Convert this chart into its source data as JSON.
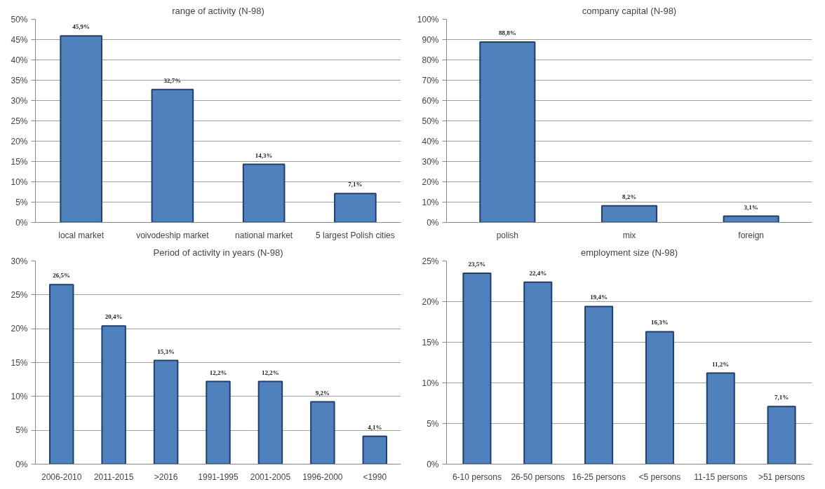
{
  "chart_data": [
    {
      "type": "bar",
      "title": "range of activity (N-98)",
      "categories": [
        "local market",
        "voivodeship market",
        "national market",
        "5 largest Polish cities"
      ],
      "values": [
        45.9,
        32.7,
        14.3,
        7.1
      ],
      "value_labels": [
        "45,9%",
        "32,7%",
        "14,3%",
        "7,1%"
      ],
      "color": "#4f81bd",
      "ylim": [
        0,
        50
      ],
      "yticks": [
        {
          "value": 0,
          "label": "0%"
        },
        {
          "value": 5,
          "label": "5%"
        },
        {
          "value": 10,
          "label": "10%"
        },
        {
          "value": 15,
          "label": "15%"
        },
        {
          "value": 20,
          "label": "20%"
        },
        {
          "value": 25,
          "label": "25%"
        },
        {
          "value": 30,
          "label": "30%"
        },
        {
          "value": 35,
          "label": "35%"
        },
        {
          "value": 40,
          "label": "40%"
        },
        {
          "value": 45,
          "label": "45%"
        },
        {
          "value": 50,
          "label": "50%"
        }
      ],
      "grid": "y"
    },
    {
      "type": "bar",
      "title": "company capital (N-98)",
      "categories": [
        "polish",
        "mix",
        "foreign"
      ],
      "values": [
        88.8,
        8.2,
        3.1
      ],
      "value_labels": [
        "88,8%",
        "8,2%",
        "3,1%"
      ],
      "color": "#4f81bd",
      "ylim": [
        0,
        100
      ],
      "yticks": [
        {
          "value": 0,
          "label": "0%"
        },
        {
          "value": 10,
          "label": "10%"
        },
        {
          "value": 20,
          "label": "20%"
        },
        {
          "value": 30,
          "label": "30%"
        },
        {
          "value": 40,
          "label": "40%"
        },
        {
          "value": 50,
          "label": "50%"
        },
        {
          "value": 60,
          "label": "60%"
        },
        {
          "value": 70,
          "label": "70%"
        },
        {
          "value": 80,
          "label": "80%"
        },
        {
          "value": 90,
          "label": "90%"
        },
        {
          "value": 100,
          "label": "100%"
        }
      ],
      "grid": "y"
    },
    {
      "type": "bar",
      "title": "Period of activity in years (N-98)",
      "categories": [
        "2006-2010",
        "2011-2015",
        ">2016",
        "1991-1995",
        "2001-2005",
        "1996-2000",
        "<1990"
      ],
      "values": [
        26.5,
        20.4,
        15.3,
        12.2,
        12.2,
        9.2,
        4.1
      ],
      "value_labels": [
        "26,5%",
        "20,4%",
        "15,3%",
        "12,2%",
        "12,2%",
        "9,2%",
        "4,1%"
      ],
      "color": "#4f81bd",
      "ylim": [
        0,
        30
      ],
      "yticks": [
        {
          "value": 0,
          "label": "0%"
        },
        {
          "value": 5,
          "label": "5%"
        },
        {
          "value": 10,
          "label": "10%"
        },
        {
          "value": 15,
          "label": "15%"
        },
        {
          "value": 20,
          "label": "20%"
        },
        {
          "value": 25,
          "label": "25%"
        },
        {
          "value": 30,
          "label": "30%"
        }
      ],
      "grid": "y"
    },
    {
      "type": "bar",
      "title": "employment size (N-98)",
      "categories": [
        "6-10 persons",
        "26-50 persons",
        "16-25 persons",
        "<5 persons",
        "11-15 persons",
        ">51 persons"
      ],
      "values": [
        23.5,
        22.4,
        19.4,
        16.3,
        11.2,
        7.1
      ],
      "value_labels": [
        "23,5%",
        "22,4%",
        "19,4%",
        "16,3%",
        "11,2%",
        "7,1%"
      ],
      "color": "#4f81bd",
      "ylim": [
        0,
        25
      ],
      "yticks": [
        {
          "value": 0,
          "label": "0%"
        },
        {
          "value": 5,
          "label": "5%"
        },
        {
          "value": 10,
          "label": "10%"
        },
        {
          "value": 15,
          "label": "15%"
        },
        {
          "value": 20,
          "label": "20%"
        },
        {
          "value": 25,
          "label": "25%"
        }
      ],
      "grid": "y"
    }
  ]
}
